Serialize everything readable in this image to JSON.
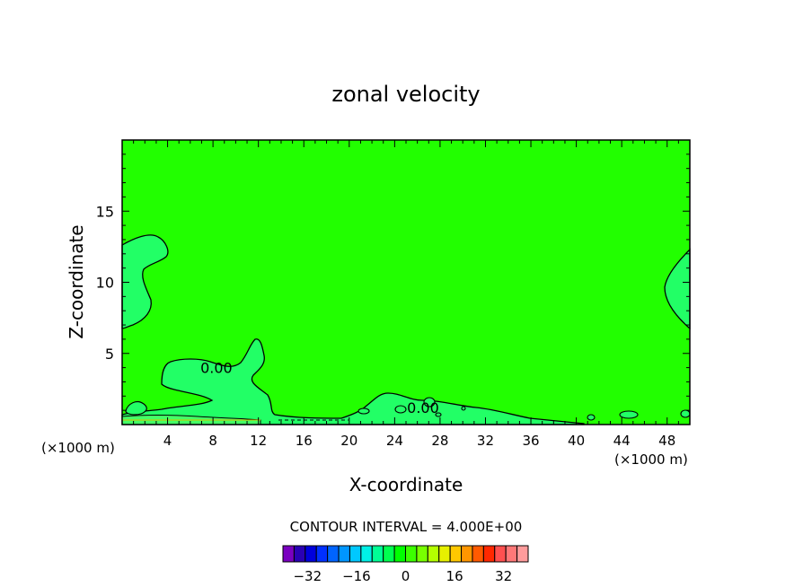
{
  "chart_data": {
    "type": "heatmap",
    "title": "zonal velocity",
    "xlabel": "X-coordinate",
    "ylabel": "Z-coordinate",
    "x_unit_left": "(×1000 m)",
    "x_unit_right": "(×1000 m)",
    "xlim": [
      0,
      50
    ],
    "ylim": [
      0,
      20
    ],
    "x_ticks": [
      4,
      8,
      12,
      16,
      20,
      24,
      28,
      32,
      36,
      40,
      44,
      48
    ],
    "y_ticks": [
      5,
      10,
      15
    ],
    "contour_labels": [
      {
        "text": "0.00",
        "x": 8.3,
        "z": 4.0
      },
      {
        "text": "0.00",
        "x": 26.5,
        "z": 1.2
      }
    ],
    "contour_interval_text": "CONTOUR INTERVAL = 4.000E+00",
    "colorbar": {
      "min": -40,
      "max": 40,
      "step": 4,
      "labels": [
        "-32",
        "-16",
        "0",
        "16",
        "32"
      ],
      "label_values": [
        -32,
        -16,
        0,
        16,
        32
      ],
      "colors": [
        "#7a00c0",
        "#2a00b4",
        "#0000dc",
        "#0030ff",
        "#0064ff",
        "#0096ff",
        "#00c8ff",
        "#00f0e6",
        "#00ff96",
        "#00ff50",
        "#00ff00",
        "#3cff00",
        "#78ff00",
        "#b4ff00",
        "#e6f000",
        "#ffc800",
        "#ff9600",
        "#ff5a00",
        "#ff2800",
        "#ff5050",
        "#ff7878",
        "#ff9c9c"
      ]
    },
    "background_color": "#22ff00",
    "feature_color": "#22ff66"
  }
}
